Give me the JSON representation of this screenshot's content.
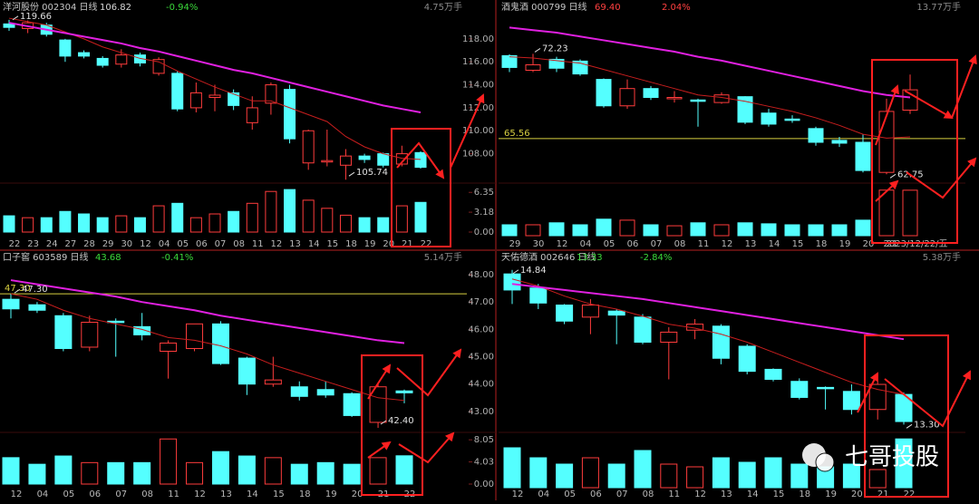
{
  "chart_data": [
    {
      "type": "candlestick",
      "name": "洋河股份 002304 日线",
      "price": "106.82",
      "change": "-0.94%",
      "volume_unit": "4.75万手",
      "change_color": "#3ad93a",
      "price_color": "#d8d8d8",
      "up_color": "#ff3c3c",
      "down_color": "#54ffff",
      "categories": [
        "22",
        "23",
        "24",
        "27",
        "28",
        "29",
        "30",
        "12",
        "04",
        "05",
        "06",
        "07",
        "08",
        "11",
        "12",
        "13",
        "14",
        "15",
        "18",
        "19",
        "20",
        "21",
        "22"
      ],
      "ohlc": [
        [
          119.3,
          119.66,
          118.7,
          119.0
        ],
        [
          118.9,
          119.6,
          118.5,
          119.4
        ],
        [
          119.2,
          119.4,
          118.2,
          118.4
        ],
        [
          117.9,
          118.0,
          116.0,
          116.5
        ],
        [
          116.8,
          117.0,
          116.3,
          116.5
        ],
        [
          116.3,
          116.5,
          115.5,
          115.7
        ],
        [
          115.8,
          117.1,
          115.5,
          116.6
        ],
        [
          116.6,
          116.8,
          115.6,
          115.9
        ],
        [
          115.0,
          116.4,
          114.8,
          116.2
        ],
        [
          115.0,
          115.2,
          111.7,
          111.9
        ],
        [
          112.0,
          114.2,
          111.6,
          113.3
        ],
        [
          112.9,
          114.0,
          111.7,
          113.1
        ],
        [
          113.3,
          113.6,
          111.8,
          112.2
        ],
        [
          110.7,
          113.0,
          110.1,
          112.0
        ],
        [
          112.4,
          114.2,
          111.4,
          114.0
        ],
        [
          113.6,
          114.0,
          108.9,
          109.3
        ],
        [
          107.2,
          110.1,
          106.6,
          110.0
        ],
        [
          107.3,
          110.1,
          106.9,
          107.4
        ],
        [
          107.0,
          108.4,
          105.74,
          107.8
        ],
        [
          107.8,
          108.0,
          107.2,
          107.5
        ],
        [
          108.0,
          108.1,
          106.8,
          107.0
        ],
        [
          107.1,
          108.7,
          106.9,
          108.0
        ],
        [
          108.1,
          108.2,
          106.7,
          106.82
        ]
      ],
      "volume": [
        2.6,
        2.3,
        2.3,
        3.3,
        2.9,
        2.3,
        2.6,
        2.3,
        4.2,
        4.6,
        2.3,
        2.9,
        3.3,
        4.6,
        6.5,
        6.8,
        5.1,
        3.8,
        2.7,
        2.3,
        2.3,
        4.2,
        4.75
      ],
      "lines": [
        {
          "color": "#c81e1e",
          "values": [
            119.8,
            119.5,
            119.2,
            118.6,
            118.0,
            117.3,
            116.8,
            116.3,
            116.0,
            115.2,
            114.5,
            113.8,
            113.2,
            112.6,
            112.6,
            112.0,
            111.4,
            110.8,
            109.5,
            108.6,
            108.0,
            107.6,
            107.5
          ]
        },
        {
          "color": "#e020e0",
          "values": [
            119.4,
            119.1,
            118.8,
            118.5,
            118.2,
            117.9,
            117.6,
            117.2,
            116.9,
            116.5,
            116.1,
            115.7,
            115.3,
            115.0,
            114.6,
            114.2,
            113.8,
            113.4,
            113.0,
            112.6,
            112.2,
            111.9,
            111.6
          ]
        }
      ],
      "ylim": [
        105.6,
        120.2
      ],
      "yticks": [
        {
          "value": 108,
          "label": "108.00"
        },
        {
          "value": 110,
          "label": "110.00"
        },
        {
          "value": 112,
          "label": "112.00"
        },
        {
          "value": 114,
          "label": "114.00"
        },
        {
          "value": 116,
          "label": "116.00"
        },
        {
          "value": 118,
          "label": "118.00"
        }
      ],
      "vlim": [
        0,
        7.4
      ],
      "vticks": [
        {
          "value": 0,
          "label": "0.00"
        },
        3.18,
        6.35
      ],
      "annotations": [
        119.66,
        105.74
      ]
    },
    {
      "type": "candlestick",
      "name": "酒鬼酒 000799 日线",
      "price": "69.40",
      "change": "2.04%",
      "volume_unit": "13.77万手",
      "change_color": "#ff4040",
      "price_color": "#ff4040",
      "up_color": "#ff3c3c",
      "down_color": "#54ffff",
      "categories": [
        "29",
        "30",
        "12",
        "04",
        "05",
        "06",
        "07",
        "08",
        "11",
        "12",
        "13",
        "14",
        "15",
        "18",
        "19",
        "20",
        "21",
        "2023/12/22/五"
      ],
      "ohlc": [
        [
          72.09,
          72.2,
          70.8,
          71.16
        ],
        [
          70.94,
          72.23,
          70.8,
          71.37
        ],
        [
          71.8,
          72.0,
          70.8,
          71.1
        ],
        [
          71.66,
          71.8,
          70.5,
          70.65
        ],
        [
          70.22,
          70.3,
          68.0,
          68.14
        ],
        [
          68.14,
          70.22,
          67.9,
          69.5
        ],
        [
          69.5,
          69.7,
          68.6,
          68.8
        ],
        [
          68.7,
          69.3,
          68.4,
          68.8
        ],
        [
          68.6,
          68.7,
          66.5,
          68.5
        ],
        [
          68.4,
          69.2,
          68.3,
          69.0
        ],
        [
          68.86,
          68.9,
          66.7,
          66.85
        ],
        [
          67.57,
          67.9,
          66.5,
          66.7
        ],
        [
          67.1,
          67.4,
          66.8,
          67.0
        ],
        [
          66.35,
          66.5,
          65.0,
          65.27
        ],
        [
          65.42,
          65.7,
          64.9,
          65.2
        ],
        [
          65.27,
          65.9,
          62.9,
          63.05
        ],
        [
          62.9,
          68.7,
          62.75,
          67.7
        ],
        [
          67.8,
          70.6,
          67.5,
          69.4
        ]
      ],
      "volume": [
        3.3,
        3.3,
        3.9,
        3.3,
        5.0,
        4.7,
        3.3,
        3.0,
        3.9,
        3.3,
        3.9,
        3.6,
        3.3,
        3.3,
        3.3,
        4.7,
        13.8,
        13.77
      ],
      "lines": [
        {
          "color": "#c81e1e",
          "values": [
            72.0,
            71.9,
            71.7,
            71.5,
            71.0,
            70.5,
            70.0,
            69.5,
            69.0,
            68.8,
            68.5,
            68.1,
            67.7,
            67.2,
            66.6,
            65.9,
            65.6,
            65.7
          ]
        },
        {
          "color": "#e020e0",
          "values": [
            74.3,
            74.1,
            73.9,
            73.6,
            73.3,
            73.0,
            72.7,
            72.4,
            72.0,
            71.7,
            71.3,
            70.9,
            70.5,
            70.1,
            69.7,
            69.3,
            69.0,
            68.8
          ]
        }
      ],
      "ylim": [
        62.2,
        75.4
      ],
      "vlim": [
        0,
        15.1
      ],
      "hline": 65.56,
      "hline_color": "#d8d040",
      "annotations": [
        72.23,
        62.75
      ]
    },
    {
      "type": "candlestick",
      "name": "口子窖 603589 日线",
      "price": "43.68",
      "change": "-0.41%",
      "volume_unit": "5.14万手",
      "change_color": "#3ad93a",
      "price_color": "#3ad93a",
      "up_color": "#ff3c3c",
      "down_color": "#54ffff",
      "categories": [
        "12",
        "04",
        "05",
        "06",
        "07",
        "08",
        "11",
        "12",
        "13",
        "14",
        "15",
        "18",
        "19",
        "20",
        "21",
        "22"
      ],
      "ohlc": [
        [
          47.1,
          47.3,
          46.4,
          46.75
        ],
        [
          46.9,
          47.0,
          46.6,
          46.7
        ],
        [
          46.5,
          46.6,
          45.2,
          45.3
        ],
        [
          45.35,
          46.5,
          45.2,
          46.26
        ],
        [
          46.3,
          46.4,
          45.0,
          46.25
        ],
        [
          46.1,
          46.6,
          45.6,
          45.8
        ],
        [
          45.2,
          45.6,
          44.2,
          45.5
        ],
        [
          45.3,
          46.2,
          45.2,
          46.2
        ],
        [
          46.2,
          46.3,
          44.7,
          44.75
        ],
        [
          44.95,
          45.0,
          43.6,
          44.0
        ],
        [
          44.0,
          45.0,
          43.9,
          44.15
        ],
        [
          43.9,
          44.1,
          43.4,
          43.55
        ],
        [
          43.8,
          44.1,
          43.5,
          43.6
        ],
        [
          43.65,
          43.7,
          42.8,
          42.85
        ],
        [
          42.6,
          44.0,
          42.4,
          43.9
        ],
        [
          43.75,
          43.8,
          43.3,
          43.68
        ]
      ],
      "volume": [
        4.8,
        3.6,
        5.1,
        3.9,
        3.9,
        3.9,
        8.2,
        3.9,
        5.9,
        5.1,
        4.8,
        3.6,
        3.9,
        3.6,
        4.8,
        5.14
      ],
      "lines": [
        {
          "color": "#c81e1e",
          "values": [
            47.3,
            47.1,
            46.7,
            46.4,
            46.2,
            46.0,
            45.7,
            45.6,
            45.4,
            45.1,
            44.7,
            44.4,
            44.1,
            43.8,
            43.5,
            43.4
          ]
        },
        {
          "color": "#e020e0",
          "values": [
            47.8,
            47.65,
            47.5,
            47.35,
            47.2,
            47.0,
            46.85,
            46.7,
            46.5,
            46.35,
            46.2,
            46.05,
            45.9,
            45.75,
            45.6,
            45.5
          ]
        }
      ],
      "ylim": [
        42.3,
        48.1
      ],
      "yticks": [
        {
          "value": 43,
          "label": "43.00"
        },
        {
          "value": 44,
          "label": "44.00"
        },
        {
          "value": 45,
          "label": "45.00"
        },
        {
          "value": 46,
          "label": "46.00"
        },
        {
          "value": 47,
          "label": "47.00"
        },
        {
          "value": 48,
          "label": "48.00"
        }
      ],
      "vlim": [
        0,
        8.9
      ],
      "vticks": [
        {
          "value": 0,
          "label": "0.00"
        },
        4.03,
        8.05
      ],
      "hline": {
        "value": 47.3,
        "label": "47.30"
      },
      "hline_color": "#d8d040",
      "annotations": [
        {
          "value": 47.3,
          "label": "47.30"
        },
        {
          "value": 42.4,
          "label": "42.40"
        }
      ]
    },
    {
      "type": "candlestick",
      "name": "天佑德酒 002646 日线",
      "price": "13.33",
      "change": "-2.84%",
      "volume_unit": "5.38万手",
      "change_color": "#3ad93a",
      "price_color": "#3ad93a",
      "up_color": "#ff3c3c",
      "down_color": "#54ffff",
      "categories": [
        "12",
        "04",
        "05",
        "06",
        "07",
        "08",
        "11",
        "12",
        "13",
        "14",
        "15",
        "18",
        "19",
        "20",
        "21",
        "22"
      ],
      "ohlc": [
        [
          14.8,
          14.84,
          14.5,
          14.64
        ],
        [
          14.66,
          14.7,
          14.45,
          14.51
        ],
        [
          14.49,
          14.5,
          14.3,
          14.33
        ],
        [
          14.37,
          14.55,
          14.2,
          14.49
        ],
        [
          14.43,
          14.45,
          14.1,
          14.39
        ],
        [
          14.37,
          14.4,
          14.1,
          14.12
        ],
        [
          14.12,
          14.27,
          13.75,
          14.22
        ],
        [
          14.24,
          14.35,
          14.15,
          14.3
        ],
        [
          14.28,
          14.3,
          13.9,
          13.96
        ],
        [
          14.08,
          14.1,
          13.8,
          13.83
        ],
        [
          13.85,
          13.86,
          13.73,
          13.75
        ],
        [
          13.73,
          13.76,
          13.55,
          13.57
        ],
        [
          13.67,
          13.68,
          13.45,
          13.66
        ],
        [
          13.63,
          13.7,
          13.4,
          13.45
        ],
        [
          13.45,
          13.8,
          13.35,
          13.7
        ],
        [
          13.6,
          13.62,
          13.3,
          13.33
        ]
      ],
      "volume": [
        4.4,
        3.3,
        2.6,
        3.3,
        2.6,
        4.1,
        2.6,
        2.3,
        3.3,
        2.8,
        3.3,
        2.6,
        2.3,
        2.6,
        2.0,
        5.38
      ],
      "lines": [
        {
          "color": "#c81e1e",
          "values": [
            14.75,
            14.68,
            14.58,
            14.5,
            14.45,
            14.38,
            14.3,
            14.26,
            14.2,
            14.12,
            14.02,
            13.92,
            13.82,
            13.72,
            13.65,
            13.6
          ]
        },
        {
          "color": "#e020e0",
          "values": [
            14.7,
            14.67,
            14.64,
            14.61,
            14.58,
            14.55,
            14.51,
            14.47,
            14.43,
            14.39,
            14.35,
            14.31,
            14.27,
            14.23,
            14.19,
            14.15
          ]
        }
      ],
      "ylim": [
        13.24,
        14.91
      ],
      "vlim": [
        0,
        5.8
      ],
      "annotations": [
        14.84,
        {
          "value": 13.3,
          "label": "13.30"
        }
      ]
    }
  ],
  "watermark": "七哥投股"
}
